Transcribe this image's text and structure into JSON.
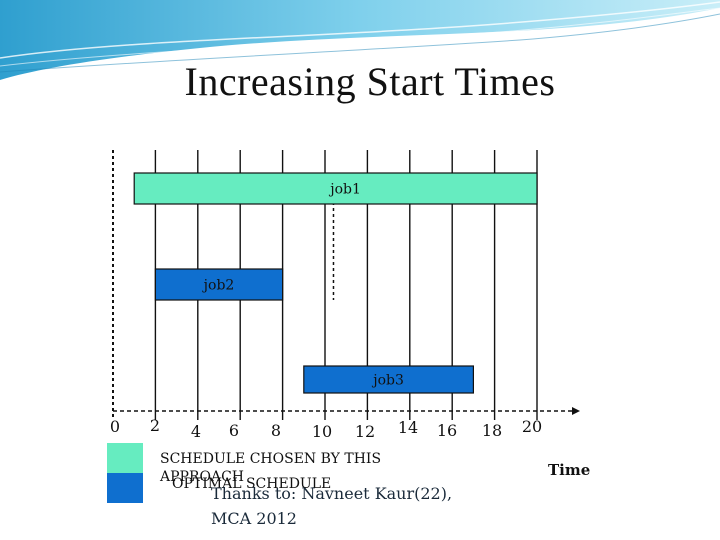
{
  "title": "Increasing Start Times",
  "chart_data": {
    "type": "gantt",
    "x_ticks": [
      0,
      2,
      4,
      6,
      8,
      10,
      12,
      14,
      16,
      18,
      20
    ],
    "xlabel": "Time",
    "jobs": [
      {
        "name": "job1",
        "start": 1,
        "end": 20,
        "color": "#66ecc0"
      },
      {
        "name": "job2",
        "start": 2,
        "end": 8,
        "color": "#0f6fcf"
      },
      {
        "name": "job3",
        "start": 9,
        "end": 17,
        "color": "#0f6fcf"
      }
    ],
    "time_markers": [
      0,
      2,
      4,
      6,
      8,
      10,
      12,
      14,
      16,
      18,
      20
    ],
    "dashed_markers": [
      0,
      11
    ]
  },
  "legend": [
    {
      "label": "SCHEDULE CHOSEN BY THIS APPROACH",
      "color": "#66ecc0"
    },
    {
      "label": "OPTIMAL SCHEDULE",
      "color": "#0f6fcf"
    }
  ],
  "credit": "Thanks to: Navneet Kaur(22), MCA 2012"
}
